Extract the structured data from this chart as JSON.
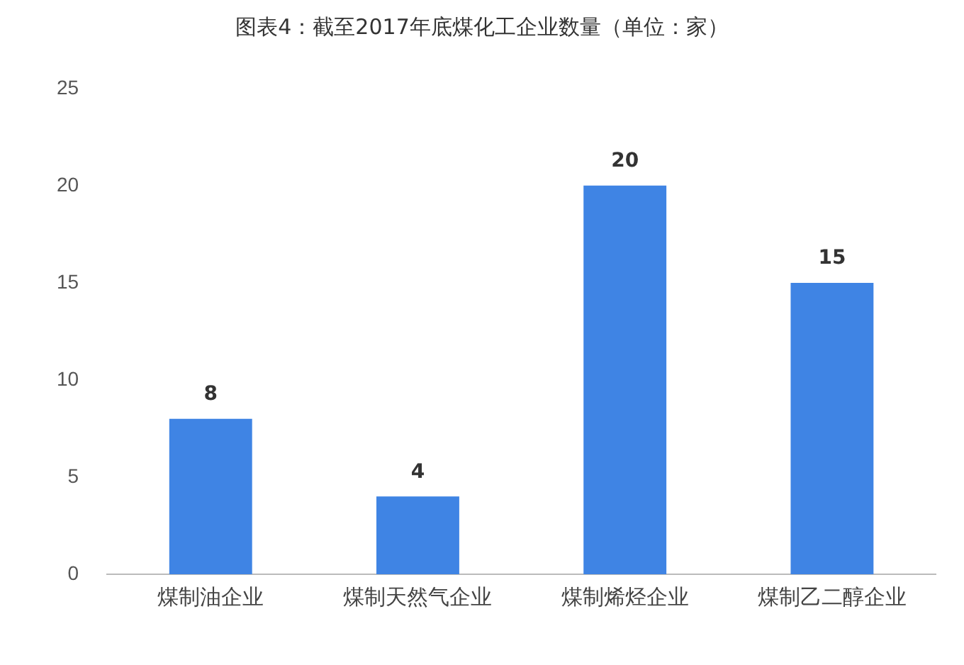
{
  "chart_data": {
    "type": "bar",
    "title": "图表4：截至2017年底煤化工企业数量（单位：家）",
    "categories": [
      "煤制油企业",
      "煤制天然气企业",
      "煤制烯烃企业",
      "煤制乙二醇企业"
    ],
    "values": [
      8,
      4,
      20,
      15
    ],
    "color": "#3f84e4",
    "ylim": [
      0,
      25
    ],
    "yticks": [
      0,
      5,
      10,
      15,
      20,
      25
    ],
    "grid": false,
    "data_labels": true
  }
}
